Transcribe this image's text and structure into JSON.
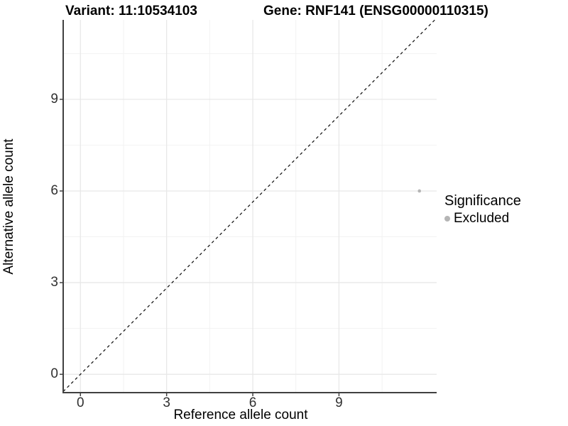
{
  "chart_data": {
    "type": "scatter",
    "title_left": "Variant: 11:10534103",
    "title_right": "Gene: RNF141 (ENSG00000110315)",
    "xlabel": "Reference allele count",
    "ylabel": "Alternative allele count",
    "x_ticks": [
      0,
      3,
      6,
      9
    ],
    "y_ticks": [
      0,
      3,
      6,
      9
    ],
    "x_minor": [
      1.5,
      4.5,
      7.5,
      10.5
    ],
    "y_minor": [
      1.5,
      4.5,
      7.5,
      10.5
    ],
    "xlim": [
      -0.6,
      12.4
    ],
    "ylim": [
      -0.6,
      11.6
    ],
    "grid": true,
    "legend_position": "right",
    "reference_line": {
      "slope": 1,
      "intercept": 0,
      "style": "dashed",
      "color": "#1a1a1a"
    },
    "series": [
      {
        "name": "Excluded",
        "color": "#b5b5b5",
        "points": [
          {
            "x": 11.8,
            "y": 6.0
          }
        ]
      }
    ],
    "legend": {
      "title": "Significance",
      "items": [
        {
          "label": "Excluded",
          "color": "#b5b5b5"
        }
      ]
    }
  },
  "colors": {
    "background": "#ffffff",
    "grid_major": "#e8e8e8",
    "grid_minor": "#f2f2f2",
    "axis": "#404040",
    "tick_text": "#303030",
    "title_text": "#000000"
  }
}
